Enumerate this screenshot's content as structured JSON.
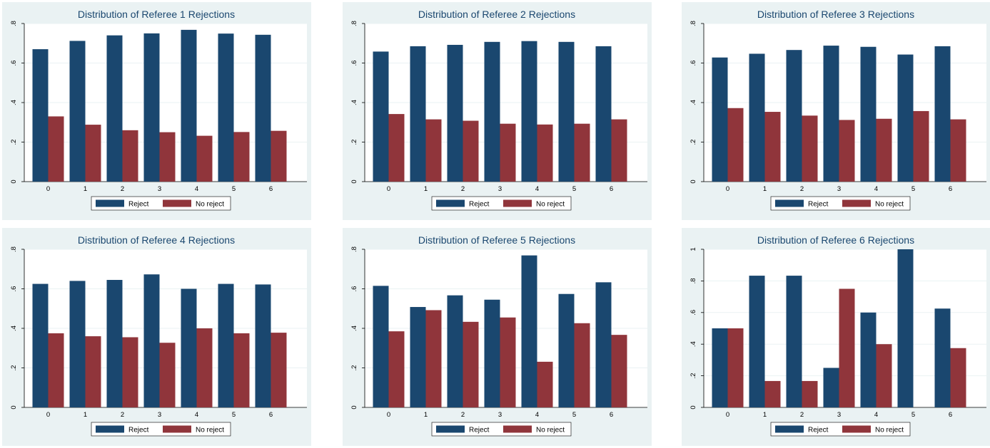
{
  "colors": {
    "reject": "#1a476f",
    "no_reject": "#90353b",
    "panel_bg": "#eaf2f3",
    "title": "#1a476f",
    "grid": "#eaf2f3"
  },
  "chart_data": [
    {
      "type": "bar",
      "title": "Distribution of Referee 1 Rejections",
      "categories": [
        "0",
        "1",
        "2",
        "3",
        "4",
        "5",
        "6"
      ],
      "series": [
        {
          "name": "Reject",
          "values": [
            0.67,
            0.712,
            0.74,
            0.75,
            0.768,
            0.749,
            0.743
          ]
        },
        {
          "name": "No reject",
          "values": [
            0.33,
            0.288,
            0.26,
            0.25,
            0.232,
            0.251,
            0.257
          ]
        }
      ],
      "yticks": [
        0,
        0.2,
        0.4,
        0.6,
        0.8
      ],
      "ytick_labels": [
        "0",
        ".2",
        ".4",
        ".6",
        ".8"
      ],
      "ylim": [
        0,
        0.8
      ],
      "legend_position": "bottom",
      "grid": true
    },
    {
      "type": "bar",
      "title": "Distribution of Referee 2 Rejections",
      "categories": [
        "0",
        "1",
        "2",
        "3",
        "4",
        "5",
        "6"
      ],
      "series": [
        {
          "name": "Reject",
          "values": [
            0.658,
            0.685,
            0.692,
            0.707,
            0.711,
            0.707,
            0.685
          ]
        },
        {
          "name": "No reject",
          "values": [
            0.342,
            0.315,
            0.308,
            0.293,
            0.289,
            0.293,
            0.315
          ]
        }
      ],
      "yticks": [
        0,
        0.2,
        0.4,
        0.6,
        0.8
      ],
      "ytick_labels": [
        "0",
        ".2",
        ".4",
        ".6",
        ".8"
      ],
      "ylim": [
        0,
        0.8
      ],
      "legend_position": "bottom",
      "grid": true
    },
    {
      "type": "bar",
      "title": "Distribution of Referee 3 Rejections",
      "categories": [
        "0",
        "1",
        "2",
        "3",
        "4",
        "5",
        "6"
      ],
      "series": [
        {
          "name": "Reject",
          "values": [
            0.628,
            0.647,
            0.666,
            0.688,
            0.682,
            0.643,
            0.685
          ]
        },
        {
          "name": "No reject",
          "values": [
            0.372,
            0.353,
            0.334,
            0.312,
            0.318,
            0.357,
            0.315
          ]
        }
      ],
      "yticks": [
        0,
        0.2,
        0.4,
        0.6,
        0.8
      ],
      "ytick_labels": [
        "0",
        ".2",
        ".4",
        ".6",
        ".8"
      ],
      "ylim": [
        0,
        0.8
      ],
      "legend_position": "bottom",
      "grid": true
    },
    {
      "type": "bar",
      "title": "Distribution of Referee 4 Rejections",
      "categories": [
        "0",
        "1",
        "2",
        "3",
        "4",
        "5",
        "6"
      ],
      "series": [
        {
          "name": "Reject",
          "values": [
            0.625,
            0.64,
            0.645,
            0.673,
            0.6,
            0.625,
            0.622
          ]
        },
        {
          "name": "No reject",
          "values": [
            0.375,
            0.36,
            0.355,
            0.327,
            0.4,
            0.375,
            0.378
          ]
        }
      ],
      "yticks": [
        0,
        0.2,
        0.4,
        0.6,
        0.8
      ],
      "ytick_labels": [
        "0",
        ".2",
        ".4",
        ".6",
        ".8"
      ],
      "ylim": [
        0,
        0.8
      ],
      "legend_position": "bottom",
      "grid": true
    },
    {
      "type": "bar",
      "title": "Distribution of Referee 5 Rejections",
      "categories": [
        "0",
        "1",
        "2",
        "3",
        "4",
        "5",
        "6"
      ],
      "series": [
        {
          "name": "Reject",
          "values": [
            0.615,
            0.508,
            0.567,
            0.545,
            0.769,
            0.574,
            0.633
          ]
        },
        {
          "name": "No reject",
          "values": [
            0.385,
            0.492,
            0.433,
            0.455,
            0.231,
            0.426,
            0.367
          ]
        }
      ],
      "yticks": [
        0,
        0.2,
        0.4,
        0.6,
        0.8
      ],
      "ytick_labels": [
        "0",
        ".2",
        ".4",
        ".6",
        ".8"
      ],
      "ylim": [
        0,
        0.8
      ],
      "legend_position": "bottom",
      "grid": true
    },
    {
      "type": "bar",
      "title": "Distribution of Referee 6 Rejections",
      "categories": [
        "0",
        "1",
        "2",
        "3",
        "4",
        "5",
        "6"
      ],
      "series": [
        {
          "name": "Reject",
          "values": [
            0.5,
            0.833,
            0.833,
            0.25,
            0.6,
            1.0,
            0.625
          ]
        },
        {
          "name": "No reject",
          "values": [
            0.5,
            0.167,
            0.167,
            0.75,
            0.4,
            0.0,
            0.375
          ]
        }
      ],
      "yticks": [
        0,
        0.2,
        0.4,
        0.6,
        0.8,
        1
      ],
      "ytick_labels": [
        "0",
        ".2",
        ".4",
        ".6",
        ".8",
        "1"
      ],
      "ylim": [
        0,
        1.0
      ],
      "legend_position": "bottom",
      "grid": true
    }
  ]
}
